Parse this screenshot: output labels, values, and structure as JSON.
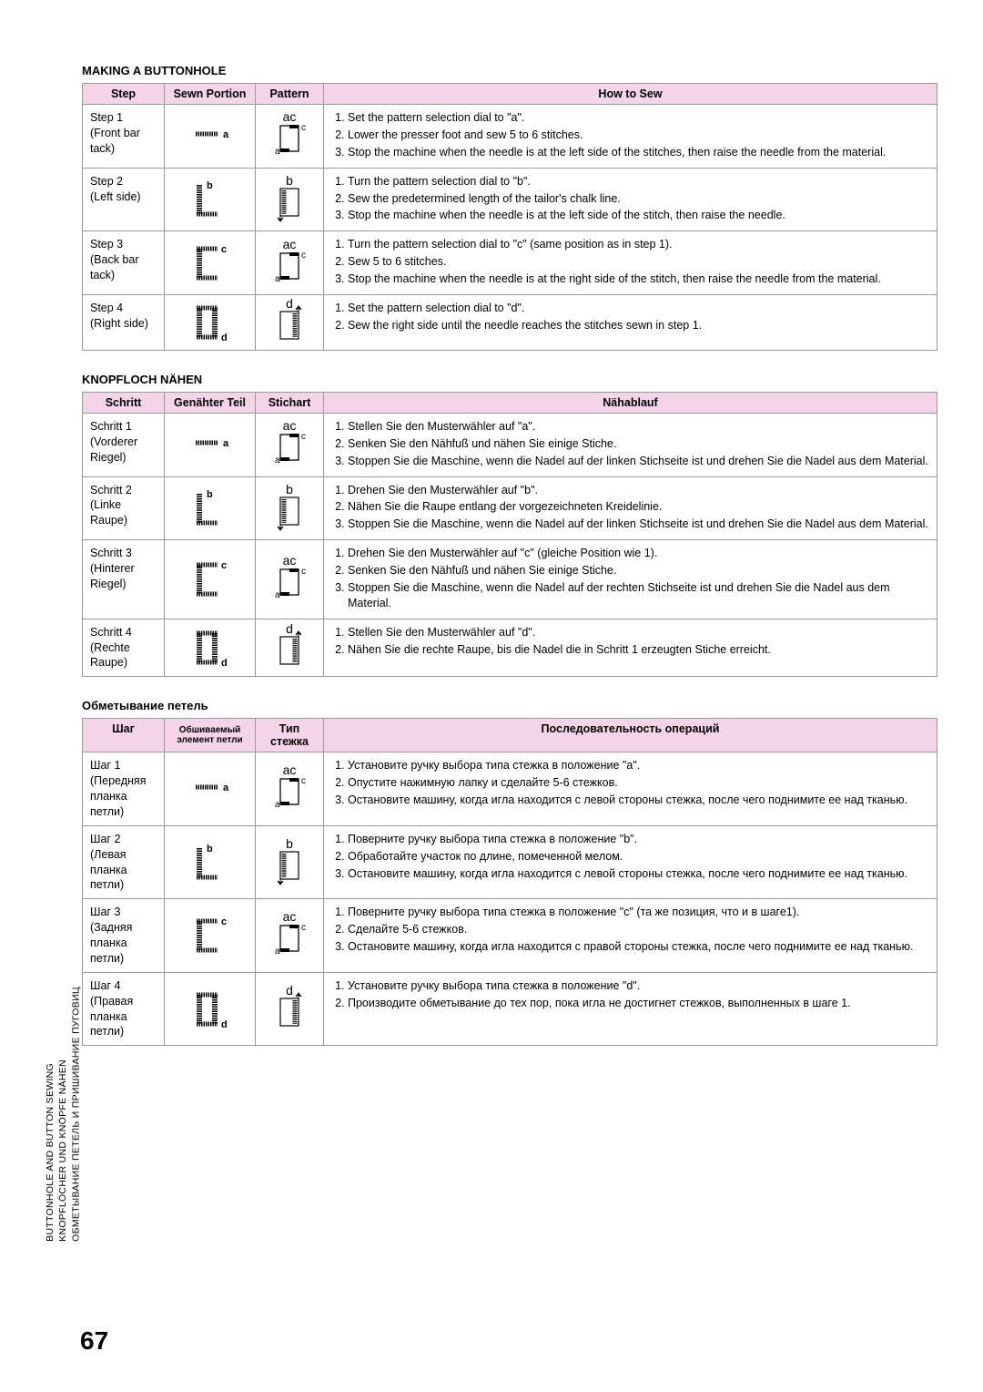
{
  "page_number": "67",
  "side_label": {
    "line1": "BUTTONHOLE AND BUTTON SEWING",
    "line2": "KNOPFLÖCHER UND KNÖPFE NÄHEN",
    "line3": "ОБМЕТЫВАНИЕ ПЕТЕЛЬ И ПРИШИВАНИЕ ПУГОВИЦ"
  },
  "sections": [
    {
      "title": "MAKING A BUTTONHOLE",
      "headers": [
        "Step",
        "Sewn Portion",
        "Pattern",
        "How to Sew"
      ],
      "rows": [
        {
          "step": "Step 1\n(Front bar tack)",
          "sewn": "a",
          "pattern": "ac",
          "how": [
            "Set the pattern selection dial to \"a\".",
            "Lower the presser foot and sew 5 to 6 stitches.",
            "Stop the machine when the needle is at the left side of the stitches, then raise the needle from the material."
          ]
        },
        {
          "step": "Step 2\n(Left side)",
          "sewn": "b",
          "pattern": "b",
          "how": [
            "Turn the pattern selection dial to \"b\".",
            "Sew the predetermined length of the tailor's chalk line.",
            "Stop the machine when the needle is at the left side of the stitch, then raise the needle."
          ]
        },
        {
          "step": "Step 3\n(Back bar tack)",
          "sewn": "c",
          "pattern": "ac",
          "how": [
            "Turn the pattern selection dial to \"c\" (same position as in step 1).",
            "Sew 5 to 6 stitches.",
            "Stop the machine when the needle is at the right side of the stitch, then raise the needle from the material."
          ]
        },
        {
          "step": "Step 4\n(Right side)",
          "sewn": "d",
          "pattern": "d",
          "how": [
            "Set the pattern selection dial to \"d\".",
            "Sew the right side until the needle reaches the stitches sewn in step 1."
          ]
        }
      ]
    },
    {
      "title": "KNOPFLOCH NÄHEN",
      "headers": [
        "Schritt",
        "Genähter Teil",
        "Stichart",
        "Nähablauf"
      ],
      "rows": [
        {
          "step": "Schritt 1\n(Vorderer Riegel)",
          "sewn": "a",
          "pattern": "ac",
          "how": [
            "Stellen Sie den Musterwähler auf \"a\".",
            "Senken Sie den Nähfuß und nähen Sie einige Stiche.",
            "Stoppen Sie die Maschine, wenn die Nadel auf der linken Stichseite ist und drehen Sie die Nadel aus dem Material."
          ]
        },
        {
          "step": "Schritt 2\n(Linke Raupe)",
          "sewn": "b",
          "pattern": "b",
          "how": [
            "Drehen Sie den Musterwähler auf \"b\".",
            "Nähen Sie die Raupe entlang der vorgezeichneten Kreidelinie.",
            "Stoppen Sie die Maschine, wenn die Nadel auf der linken Stichseite ist und drehen Sie die Nadel aus dem Material."
          ]
        },
        {
          "step": "Schritt 3\n(Hinterer Riegel)",
          "sewn": "c",
          "pattern": "ac",
          "how": [
            "Drehen Sie den Musterwähler auf \"c\" (gleiche Position wie 1).",
            "Senken Sie den Nähfuß und nähen Sie einige Stiche.",
            "Stoppen Sie die Maschine, wenn die Nadel auf der rechten Stichseite ist und drehen Sie die Nadel aus dem Material."
          ]
        },
        {
          "step": "Schritt 4\n(Rechte Raupe)",
          "sewn": "d",
          "pattern": "d",
          "how": [
            "Stellen Sie den Musterwähler auf \"d\".",
            "Nähen Sie die rechte Raupe, bis die Nadel die in Schritt 1 erzeugten Stiche erreicht."
          ]
        }
      ]
    },
    {
      "title": "Обметывание петель",
      "headers": [
        "Шаг",
        "Обшиваемый элемент петли",
        "Тип стежка",
        "Последовательность операций"
      ],
      "rows": [
        {
          "step": "Шаг 1\n(Передняя планка петли)",
          "sewn": "a",
          "pattern": "ac",
          "how": [
            "Установите ручку выбора типа стежка в положение \"a\".",
            "Опустите нажимную лапку и сделайте 5-6 стежков.",
            "Остановите машину, когда игла находится с левой стороны стежка, после чего поднимите ее над тканью."
          ]
        },
        {
          "step": "Шаг 2\n(Левая планка петли)",
          "sewn": "b",
          "pattern": "b",
          "how": [
            "Поверните ручку выбора типа стежка в положение \"b\".",
            "Обработайте участок по длине, помеченной мелом.",
            "Остановите машину, когда игла находится с левой стороны стежка, после чего поднимите ее над тканью."
          ]
        },
        {
          "step": "Шаг 3\n(Задняя планка петли)",
          "sewn": "c",
          "pattern": "ac",
          "how": [
            "Поверните ручку выбора типа стежка в положение \"c\" (та же позиция, что и в шаге1).",
            "Сделайте 5-6 стежков.",
            "Остановите машину, когда игла находится с правой стороны стежка, после чего поднимите ее над тканью."
          ]
        },
        {
          "step": "Шаг 4\n(Правая планка петли)",
          "sewn": "d",
          "pattern": "d",
          "how": [
            "Установите ручку выбора типа стежка в положение \"d\".",
            "Производите обметывание до тех пор, пока игла не достигнет стежков, выполненных в шаге 1."
          ]
        }
      ]
    }
  ],
  "styles": {
    "header_bg": "#f4d4e8",
    "border_color": "#999999",
    "text_color": "#000000",
    "font_size_body": 12.5,
    "font_size_title": 13,
    "font_size_pagenum": 28
  }
}
